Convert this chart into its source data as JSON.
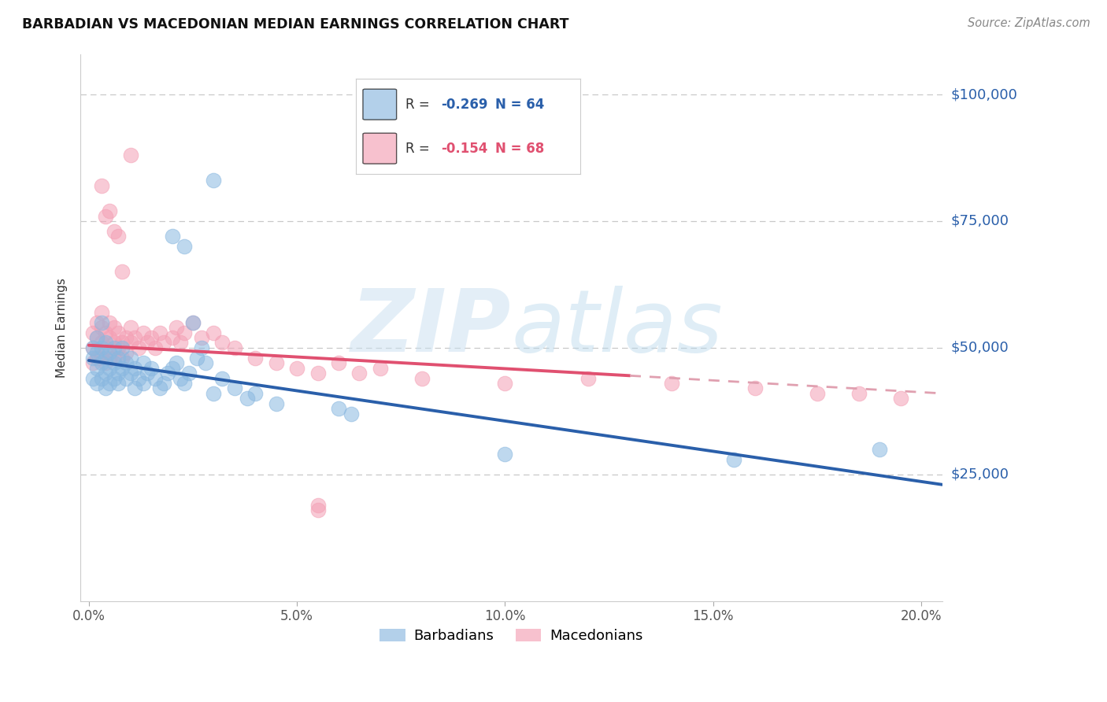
{
  "title": "BARBADIAN VS MACEDONIAN MEDIAN EARNINGS CORRELATION CHART",
  "source": "Source: ZipAtlas.com",
  "ylabel": "Median Earnings",
  "xlabel_ticks": [
    "0.0%",
    "5.0%",
    "10.0%",
    "15.0%",
    "20.0%"
  ],
  "xlabel_vals": [
    0.0,
    0.05,
    0.1,
    0.15,
    0.2
  ],
  "ylabel_ticks": [
    "$25,000",
    "$50,000",
    "$75,000",
    "$100,000"
  ],
  "ylabel_vals": [
    25000,
    50000,
    75000,
    100000
  ],
  "ylim": [
    0,
    108000
  ],
  "xlim": [
    -0.002,
    0.205
  ],
  "blue_R": "-0.269",
  "blue_N": "64",
  "pink_R": "-0.154",
  "pink_N": "68",
  "blue_color": "#8ab8e0",
  "pink_color": "#f4a0b5",
  "blue_line_color": "#2a5faa",
  "pink_line_color": "#e05070",
  "blue_label": "Barbadians",
  "pink_label": "Macedonians",
  "watermark_zip": "ZIP",
  "watermark_atlas": "atlas",
  "blue_line_x0": 0.0,
  "blue_line_x1": 0.205,
  "blue_line_y0": 47500,
  "blue_line_y1": 23000,
  "pink_line_solid_x0": 0.0,
  "pink_line_solid_x1": 0.13,
  "pink_line_solid_y0": 50500,
  "pink_line_solid_y1": 44500,
  "pink_line_dash_x0": 0.13,
  "pink_line_dash_x1": 0.205,
  "pink_line_dash_y0": 44500,
  "pink_line_dash_y1": 41000,
  "blue_x": [
    0.001,
    0.001,
    0.001,
    0.002,
    0.002,
    0.002,
    0.002,
    0.003,
    0.003,
    0.003,
    0.003,
    0.004,
    0.004,
    0.004,
    0.004,
    0.005,
    0.005,
    0.005,
    0.006,
    0.006,
    0.006,
    0.007,
    0.007,
    0.007,
    0.008,
    0.008,
    0.009,
    0.009,
    0.01,
    0.01,
    0.011,
    0.011,
    0.012,
    0.013,
    0.013,
    0.014,
    0.015,
    0.016,
    0.017,
    0.018,
    0.019,
    0.02,
    0.021,
    0.022,
    0.023,
    0.024,
    0.025,
    0.026,
    0.027,
    0.028,
    0.03,
    0.032,
    0.035,
    0.038,
    0.04,
    0.045,
    0.06,
    0.063,
    0.1,
    0.155,
    0.02,
    0.023,
    0.03,
    0.19
  ],
  "blue_y": [
    48000,
    44000,
    50000,
    46000,
    43000,
    49000,
    52000,
    47000,
    44000,
    50000,
    55000,
    45000,
    48000,
    42000,
    51000,
    46000,
    43000,
    49000,
    47000,
    44000,
    50000,
    45000,
    48000,
    43000,
    46000,
    50000,
    44000,
    47000,
    45000,
    48000,
    46000,
    42000,
    44000,
    47000,
    43000,
    45000,
    46000,
    44000,
    42000,
    43000,
    45000,
    46000,
    47000,
    44000,
    43000,
    45000,
    55000,
    48000,
    50000,
    47000,
    41000,
    44000,
    42000,
    40000,
    41000,
    39000,
    38000,
    37000,
    29000,
    28000,
    72000,
    70000,
    83000,
    30000
  ],
  "pink_x": [
    0.001,
    0.001,
    0.001,
    0.002,
    0.002,
    0.002,
    0.003,
    0.003,
    0.003,
    0.003,
    0.004,
    0.004,
    0.004,
    0.005,
    0.005,
    0.005,
    0.006,
    0.006,
    0.006,
    0.007,
    0.007,
    0.008,
    0.008,
    0.009,
    0.009,
    0.01,
    0.01,
    0.011,
    0.012,
    0.013,
    0.014,
    0.015,
    0.016,
    0.017,
    0.018,
    0.02,
    0.021,
    0.022,
    0.023,
    0.025,
    0.027,
    0.03,
    0.032,
    0.035,
    0.04,
    0.045,
    0.05,
    0.055,
    0.06,
    0.065,
    0.055,
    0.07,
    0.08,
    0.1,
    0.12,
    0.14,
    0.16,
    0.175,
    0.185,
    0.195,
    0.003,
    0.004,
    0.005,
    0.006,
    0.007,
    0.008,
    0.01,
    0.055
  ],
  "pink_y": [
    50000,
    53000,
    47000,
    52000,
    48000,
    55000,
    51000,
    48000,
    54000,
    57000,
    50000,
    53000,
    47000,
    52000,
    48000,
    55000,
    51000,
    48000,
    54000,
    50000,
    53000,
    51000,
    48000,
    52000,
    49000,
    51000,
    54000,
    52000,
    50000,
    53000,
    51000,
    52000,
    50000,
    53000,
    51000,
    52000,
    54000,
    51000,
    53000,
    55000,
    52000,
    53000,
    51000,
    50000,
    48000,
    47000,
    46000,
    45000,
    47000,
    45000,
    19000,
    46000,
    44000,
    43000,
    44000,
    43000,
    42000,
    41000,
    41000,
    40000,
    82000,
    76000,
    77000,
    73000,
    72000,
    65000,
    88000,
    18000
  ]
}
